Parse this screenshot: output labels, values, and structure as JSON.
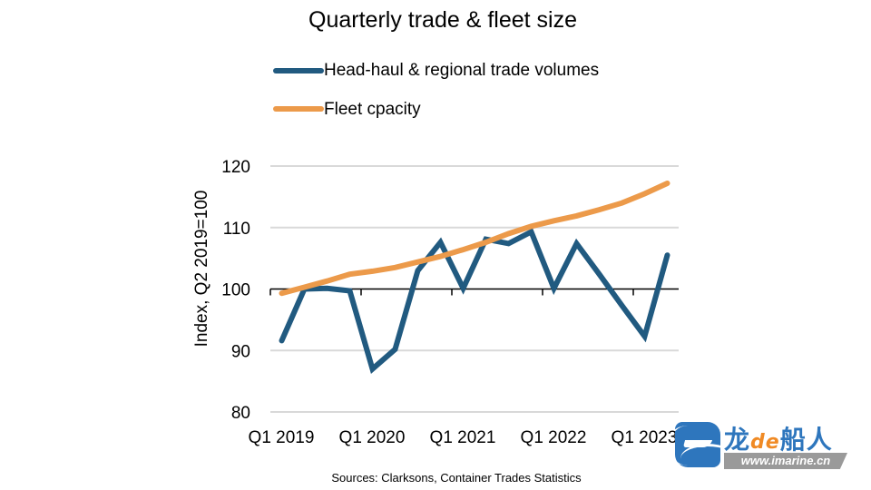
{
  "chart_data": {
    "type": "line",
    "title": "Quarterly trade & fleet size",
    "xlabel": "",
    "ylabel": "Index, Q2 2019=100",
    "ylim": [
      80,
      120
    ],
    "yticks": [
      80,
      90,
      100,
      110,
      120
    ],
    "grid": true,
    "legend_position": "top",
    "categories": [
      "Q1 2019",
      "Q2 2019",
      "Q3 2019",
      "Q4 2019",
      "Q1 2020",
      "Q2 2020",
      "Q3 2020",
      "Q4 2020",
      "Q1 2021",
      "Q2 2021",
      "Q3 2021",
      "Q4 2021",
      "Q1 2022",
      "Q2 2022",
      "Q3 2022",
      "Q4 2022",
      "Q1 2023",
      "Q2 2023"
    ],
    "xtick_labels": [
      "Q1 2019",
      "Q1 2020",
      "Q1 2021",
      "Q1 2022",
      "Q1 2023"
    ],
    "series": [
      {
        "name": "Head-haul & regional trade volumes",
        "color": "#215a80",
        "values": [
          91.6,
          100.0,
          100.1,
          99.7,
          87.0,
          90.2,
          103.0,
          107.6,
          100.1,
          108.1,
          107.4,
          109.3,
          100.1,
          107.4,
          102.4,
          97.3,
          92.3,
          105.5
        ]
      },
      {
        "name": "Fleet cpacity",
        "color": "#ec9a4a",
        "values": [
          99.3,
          100.3,
          101.3,
          102.4,
          102.9,
          103.5,
          104.4,
          105.3,
          106.4,
          107.6,
          109.0,
          110.2,
          111.1,
          111.9,
          112.9,
          114.0,
          115.5,
          117.2
        ]
      }
    ],
    "source": "Sources: Clarksons, Container Trades Statistics"
  },
  "watermark": {
    "name_part1": "龙",
    "name_part2": "de",
    "name_part3": "船人",
    "url": "www.imarine.cn"
  }
}
